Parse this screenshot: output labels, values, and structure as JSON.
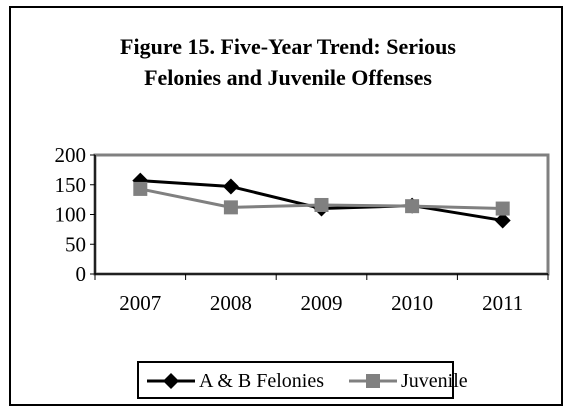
{
  "chart_data": {
    "type": "line",
    "title_line1": "Figure 15.  Five-Year Trend:  Serious",
    "title_line2": "Felonies and Juvenile Offenses",
    "categories": [
      "2007",
      "2008",
      "2009",
      "2010",
      "2011"
    ],
    "y_ticks": [
      "0",
      "50",
      "100",
      "150",
      "200"
    ],
    "ylim": [
      0,
      200
    ],
    "grid": false,
    "legend_position": "bottom",
    "series": [
      {
        "name": "A & B Felonies",
        "values": [
          157,
          147,
          110,
          115,
          90
        ],
        "color": "#000000",
        "marker": "diamond"
      },
      {
        "name": "Juvenile",
        "values": [
          143,
          112,
          116,
          114,
          110
        ],
        "color": "#808080",
        "marker": "square"
      }
    ]
  },
  "colors": {
    "plot_border": "#808080",
    "axis": "#000000"
  }
}
